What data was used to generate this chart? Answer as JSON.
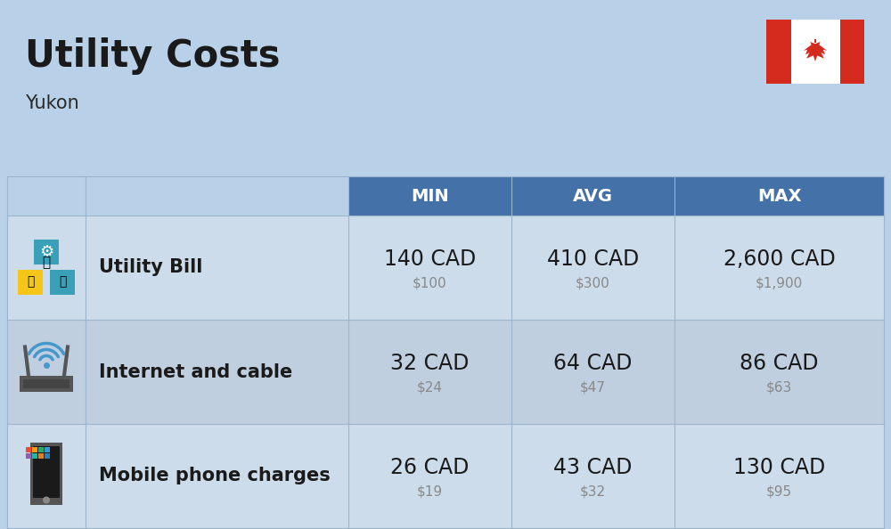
{
  "title": "Utility Costs",
  "subtitle": "Yukon",
  "background_color": "#b8d0e8",
  "header_bg_color": "#4472a8",
  "header_text_color": "#ffffff",
  "row_bg_color_1": "#ccdcea",
  "row_bg_color_2": "#bfcfe0",
  "divider_color": "#9ab5cc",
  "col_headers": [
    "MIN",
    "AVG",
    "MAX"
  ],
  "rows": [
    {
      "label": "Utility Bill",
      "min_cad": "140 CAD",
      "min_usd": "$100",
      "avg_cad": "410 CAD",
      "avg_usd": "$300",
      "max_cad": "2,600 CAD",
      "max_usd": "$1,900"
    },
    {
      "label": "Internet and cable",
      "min_cad": "32 CAD",
      "min_usd": "$24",
      "avg_cad": "64 CAD",
      "avg_usd": "$47",
      "max_cad": "86 CAD",
      "max_usd": "$63"
    },
    {
      "label": "Mobile phone charges",
      "min_cad": "26 CAD",
      "min_usd": "$19",
      "avg_cad": "43 CAD",
      "avg_usd": "$32",
      "max_cad": "130 CAD",
      "max_usd": "$95"
    }
  ],
  "title_fontsize": 30,
  "subtitle_fontsize": 15,
  "header_fontsize": 14,
  "cell_fontsize_main": 17,
  "cell_fontsize_sub": 11,
  "label_fontsize": 15
}
